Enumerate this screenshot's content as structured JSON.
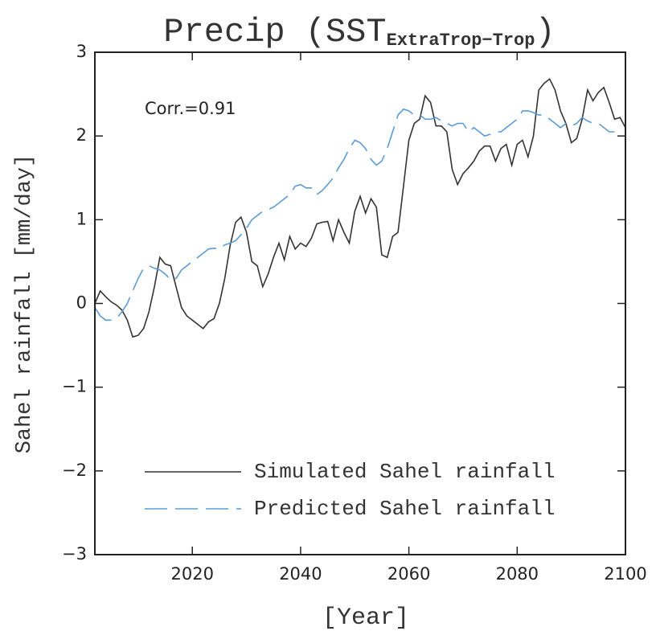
{
  "chart_data": {
    "type": "line",
    "title": "Precip (SST",
    "title_subscript": "ExtraTrop−Trop",
    "title_end": ")",
    "annotation": "Corr.=0.91",
    "xlabel": "[Year]",
    "ylabel": "Sahel rainfall [mm/day]",
    "x": [
      2002,
      2003,
      2004,
      2005,
      2006,
      2007,
      2008,
      2009,
      2010,
      2011,
      2012,
      2013,
      2014,
      2015,
      2016,
      2017,
      2018,
      2019,
      2020,
      2021,
      2022,
      2023,
      2024,
      2025,
      2026,
      2027,
      2028,
      2029,
      2030,
      2031,
      2032,
      2033,
      2034,
      2035,
      2036,
      2037,
      2038,
      2039,
      2040,
      2041,
      2042,
      2043,
      2044,
      2045,
      2046,
      2047,
      2048,
      2049,
      2050,
      2051,
      2052,
      2053,
      2054,
      2055,
      2056,
      2057,
      2058,
      2059,
      2060,
      2061,
      2062,
      2063,
      2064,
      2065,
      2066,
      2067,
      2068,
      2069,
      2070,
      2071,
      2072,
      2073,
      2074,
      2075,
      2076,
      2077,
      2078,
      2079,
      2080,
      2081,
      2082,
      2083,
      2084,
      2085,
      2086,
      2087,
      2088,
      2089,
      2090,
      2091,
      2092,
      2093,
      2094,
      2095,
      2096,
      2097,
      2098,
      2099,
      2100
    ],
    "series": [
      {
        "name": "Simulated Sahel rainfall",
        "color": "#333333",
        "dash": "none",
        "values": [
          0.0,
          0.15,
          0.08,
          0.02,
          -0.02,
          -0.08,
          -0.2,
          -0.4,
          -0.38,
          -0.3,
          -0.1,
          0.2,
          0.55,
          0.47,
          0.45,
          0.2,
          -0.05,
          -0.15,
          -0.2,
          -0.25,
          -0.3,
          -0.22,
          -0.18,
          0.0,
          0.3,
          0.7,
          0.97,
          1.03,
          0.85,
          0.5,
          0.45,
          0.2,
          0.35,
          0.55,
          0.72,
          0.52,
          0.8,
          0.65,
          0.72,
          0.68,
          0.78,
          0.95,
          0.97,
          0.98,
          0.75,
          1.0,
          0.85,
          0.72,
          1.1,
          1.28,
          1.08,
          1.25,
          1.15,
          0.58,
          0.55,
          0.8,
          0.85,
          1.4,
          1.95,
          2.15,
          2.2,
          2.48,
          2.4,
          2.12,
          2.12,
          2.05,
          1.6,
          1.42,
          1.55,
          1.62,
          1.7,
          1.82,
          1.88,
          1.88,
          1.7,
          1.85,
          1.9,
          1.65,
          1.9,
          1.95,
          1.75,
          2.0,
          2.55,
          2.63,
          2.68,
          2.55,
          2.3,
          2.15,
          1.92,
          1.97,
          2.2,
          2.55,
          2.42,
          2.52,
          2.58,
          2.4,
          2.2,
          2.22,
          2.1
        ]
      },
      {
        "name": "Predicted Sahel rainfall",
        "color": "#5b9bd5",
        "dash": "28 10",
        "values": [
          -0.05,
          -0.15,
          -0.2,
          -0.2,
          -0.18,
          -0.1,
          0.0,
          0.15,
          0.3,
          0.42,
          0.45,
          0.42,
          0.4,
          0.35,
          0.28,
          0.3,
          0.4,
          0.45,
          0.5,
          0.55,
          0.6,
          0.65,
          0.66,
          0.65,
          0.7,
          0.72,
          0.75,
          0.82,
          0.9,
          1.0,
          1.05,
          1.1,
          1.12,
          1.15,
          1.2,
          1.25,
          1.3,
          1.4,
          1.42,
          1.38,
          1.38,
          1.3,
          1.35,
          1.42,
          1.5,
          1.62,
          1.72,
          1.85,
          1.95,
          1.92,
          1.85,
          1.72,
          1.65,
          1.7,
          1.85,
          2.05,
          2.25,
          2.32,
          2.3,
          2.25,
          2.25,
          2.2,
          2.2,
          2.22,
          2.18,
          2.15,
          2.12,
          2.15,
          2.15,
          2.05,
          2.1,
          2.05,
          2.0,
          2.02,
          2.05,
          2.05,
          2.1,
          2.15,
          2.2,
          2.3,
          2.3,
          2.28,
          2.25,
          2.25,
          2.2,
          2.15,
          2.1,
          2.15,
          2.12,
          2.15,
          2.22,
          2.18,
          2.15,
          2.15,
          2.1,
          2.05,
          2.05,
          null,
          null
        ]
      }
    ],
    "xlim": [
      2002,
      2100
    ],
    "xticks": [
      2020,
      2040,
      2060,
      2080,
      2100
    ],
    "ylim": [
      -3,
      3
    ],
    "yticks": [
      {
        "value": -3,
        "label": "−3"
      },
      {
        "value": -2,
        "label": "−2"
      },
      {
        "value": -1,
        "label": "−1"
      },
      0,
      1,
      2,
      3
    ],
    "legend": "lower left"
  }
}
